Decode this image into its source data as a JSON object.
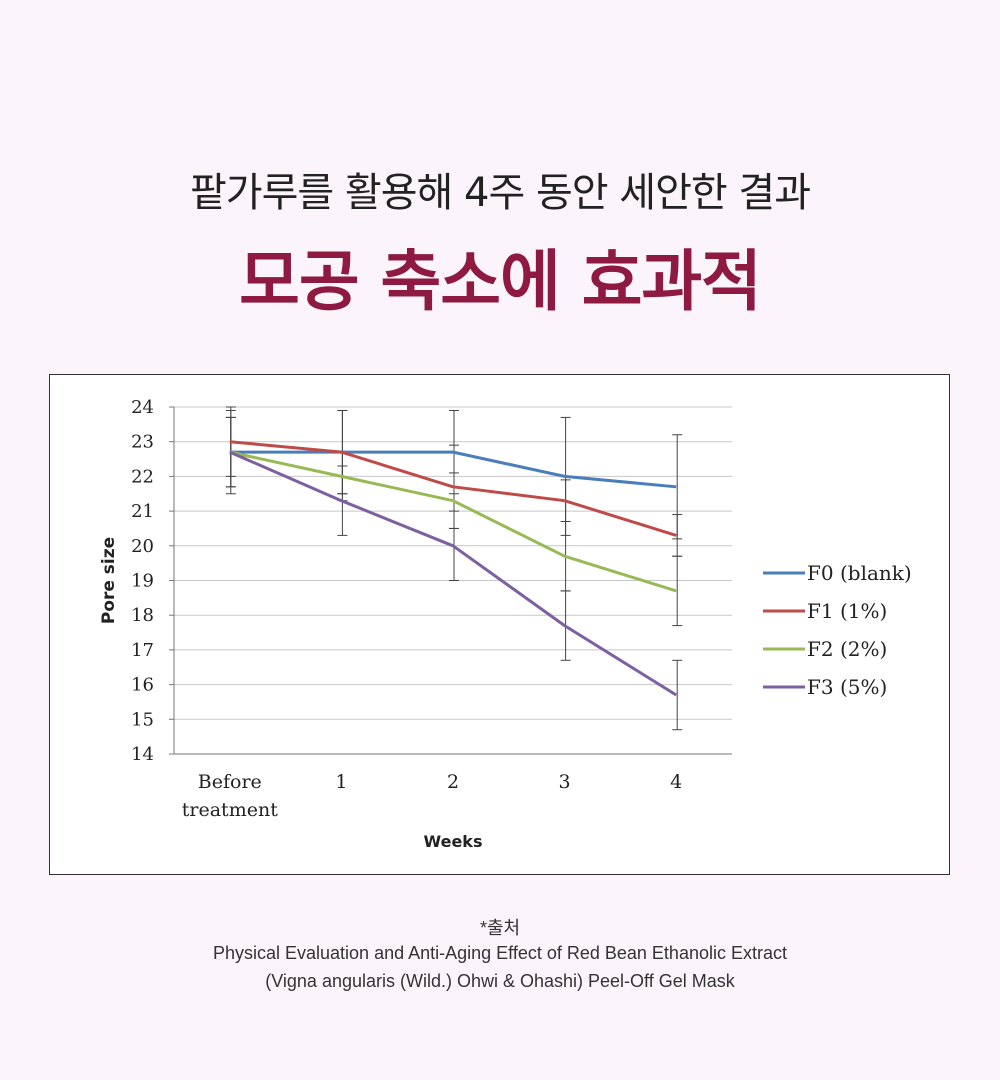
{
  "header": {
    "subtitle": "팥가루를 활용해 4주 동안 세안한 결과",
    "title": "모공 축소에 효과적"
  },
  "chart_data": {
    "type": "line",
    "xlabel": "Weeks",
    "ylabel": "Pore size",
    "ylim": [
      14,
      24
    ],
    "categories": [
      "Before\ntreatment",
      "1",
      "2",
      "3",
      "4"
    ],
    "yticks": [
      14,
      15,
      16,
      17,
      18,
      19,
      20,
      21,
      22,
      23,
      24
    ],
    "grid": true,
    "legend_position": "right",
    "series": [
      {
        "name": "F0 (blank)",
        "color": "#4a7ebb",
        "values": [
          22.7,
          22.7,
          22.7,
          22.0,
          21.7
        ],
        "error": [
          1.2,
          1.2,
          1.2,
          1.7,
          1.5
        ]
      },
      {
        "name": "F1 (1%)",
        "color": "#be4b48",
        "values": [
          23.0,
          22.7,
          21.7,
          21.3,
          20.3
        ],
        "error": [
          1.0,
          1.2,
          1.2,
          0.6,
          0.6
        ]
      },
      {
        "name": "F2 (2%)",
        "color": "#98b954",
        "values": [
          22.7,
          22.0,
          21.3,
          19.7,
          18.7
        ],
        "error": [
          1.0,
          0.7,
          0.8,
          1.0,
          1.0
        ]
      },
      {
        "name": "F3 (5%)",
        "color": "#7d60a0",
        "values": [
          22.7,
          21.3,
          20.0,
          17.7,
          15.7
        ],
        "error": [
          1.0,
          1.0,
          1.0,
          1.0,
          1.0
        ]
      }
    ]
  },
  "source": {
    "label": "*출처",
    "line1": "Physical Evaluation and Anti-Aging Effect of Red Bean Ethanolic Extract",
    "line2": "(Vigna angularis (Wild.) Ohwi & Ohashi) Peel-Off Gel Mask"
  }
}
